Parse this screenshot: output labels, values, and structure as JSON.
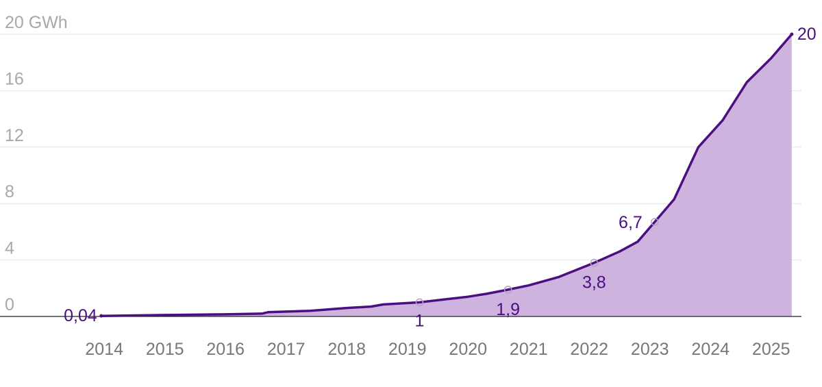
{
  "chart_data": {
    "type": "area",
    "x": [
      2013.95,
      2015,
      2016,
      2016.6,
      2016.7,
      2017.4,
      2018,
      2018.4,
      2018.6,
      2019.2,
      2019.6,
      2020,
      2020.3,
      2020.66,
      2021,
      2021.5,
      2022.08,
      2022.5,
      2022.8,
      2023.08,
      2023.4,
      2023.8,
      2024.2,
      2024.6,
      2025,
      2025.34
    ],
    "values": [
      0.04,
      0.1,
      0.15,
      0.2,
      0.3,
      0.4,
      0.6,
      0.7,
      0.85,
      1,
      1.2,
      1.4,
      1.6,
      1.9,
      2.2,
      2.8,
      3.8,
      4.6,
      5.3,
      6.7,
      8.3,
      12.0,
      13.9,
      16.6,
      18.3,
      20
    ],
    "line_color": "#4b0f82",
    "fill_color": "#cdb3dd",
    "annotations": [
      {
        "x": 2013.95,
        "y": 0.04,
        "label": "0,04"
      },
      {
        "x": 2019.2,
        "y": 1,
        "label": "1"
      },
      {
        "x": 2020.66,
        "y": 1.9,
        "label": "1,9"
      },
      {
        "x": 2022.08,
        "y": 3.8,
        "label": "3,8"
      },
      {
        "x": 2023.08,
        "y": 6.7,
        "label": "6,7"
      },
      {
        "x": 2025.34,
        "y": 20,
        "label": "20"
      }
    ],
    "xlim": [
      2012.28,
      2025.5
    ],
    "xticks": [
      2014,
      2015,
      2016,
      2017,
      2018,
      2019,
      2020,
      2021,
      2022,
      2023,
      2024,
      2025
    ],
    "ylim": [
      0,
      20
    ],
    "yticks": [
      0,
      4,
      8,
      12,
      16,
      {
        "value": 20,
        "label": "20 GWh"
      }
    ],
    "grid": true
  }
}
